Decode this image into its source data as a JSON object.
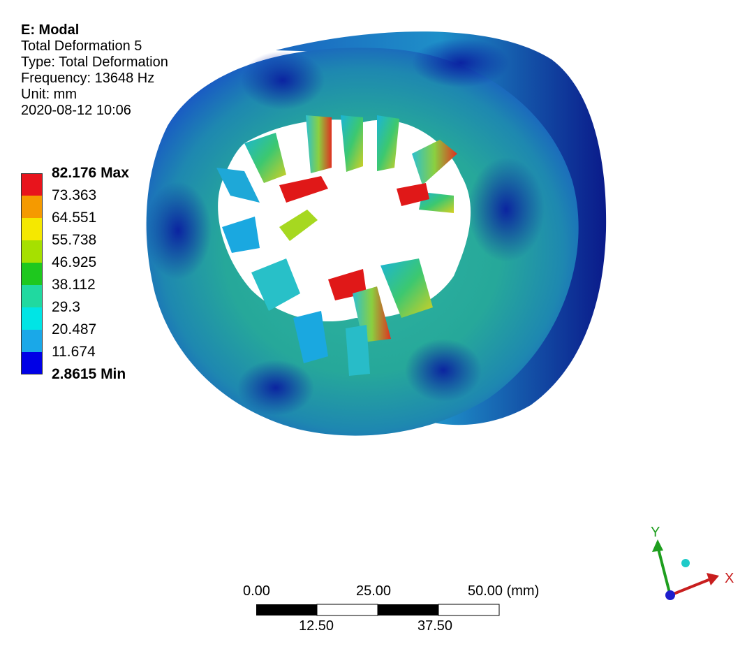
{
  "analysis": {
    "title": "E: Modal",
    "result_name": "Total Deformation 5",
    "type": "Type: Total Deformation",
    "frequency": "Frequency: 13648 Hz",
    "unit": "Unit: mm",
    "timestamp": "2020-08-12 10:06"
  },
  "legend": {
    "max_label": "82.176 Max",
    "min_label": "2.8615 Min",
    "levels": [
      "73.363",
      "64.551",
      "55.738",
      "46.925",
      "38.112",
      "29.3",
      "20.487",
      "11.674"
    ],
    "colors": [
      "#e8141c",
      "#f59a00",
      "#f5e800",
      "#a6e000",
      "#1ec81e",
      "#20d9a0",
      "#00e5e5",
      "#1aa8e8",
      "#0000e6"
    ]
  },
  "scale_bar": {
    "top_labels": [
      "0.00",
      "25.00",
      "50.00 (mm)"
    ],
    "bottom_labels": [
      "12.50",
      "37.50"
    ]
  },
  "triad": {
    "x_label": "X",
    "y_label": "Y",
    "colors": {
      "x": "#c81e1e",
      "y": "#1e9e1e",
      "z": "#1e1ecc",
      "iso": "#1ecac8"
    }
  }
}
